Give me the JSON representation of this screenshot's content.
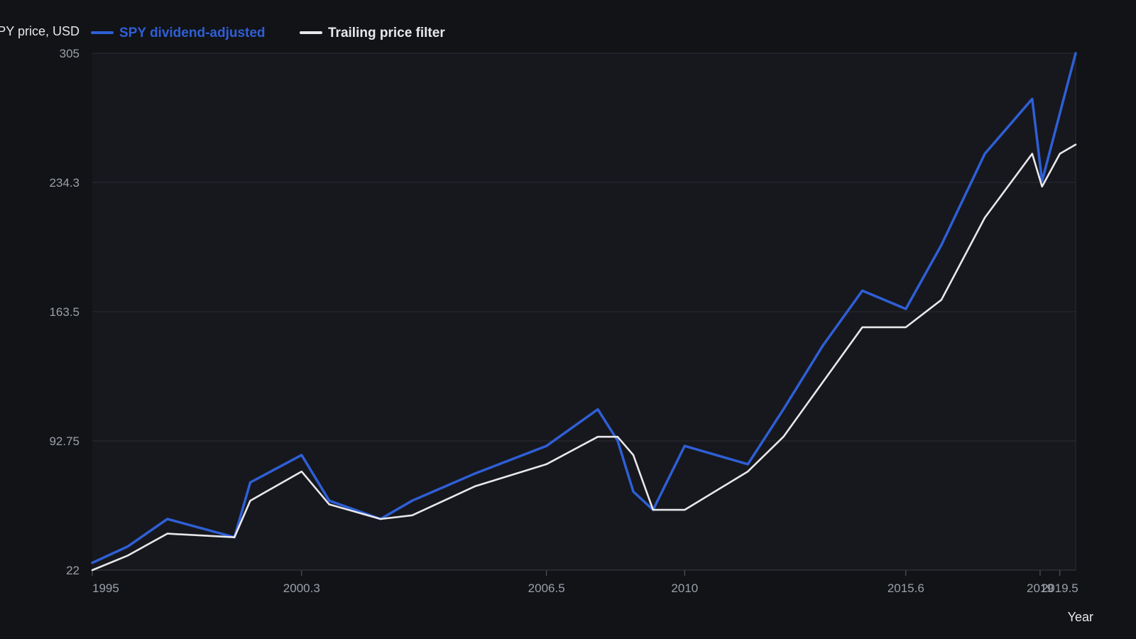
{
  "chart_data": {
    "type": "line",
    "ylabel": "SPY price, USD",
    "xlabel": "Year",
    "y_ticks": [
      "22",
      "92.75",
      "163.5",
      "234.3",
      "305"
    ],
    "x_ticks": [
      "1995",
      "2000.3",
      "2006.5",
      "2010",
      "2015.6",
      "2019",
      "2019.5"
    ],
    "xlim": [
      1995,
      2019.9
    ],
    "ylim": [
      22,
      305
    ],
    "grid": true,
    "legend_position": "top",
    "series": [
      {
        "name": "SPY dividend-adjusted",
        "color": "#2f5fd6",
        "x": [
          1995,
          1995.9,
          1996.9,
          1998.6,
          1999,
          2000.3,
          2001,
          2002.3,
          2003.1,
          2004.7,
          2006.5,
          2007.8,
          2008.3,
          2008.7,
          2009.2,
          2010,
          2011.6,
          2012.5,
          2013.5,
          2014.5,
          2015.6,
          2016.5,
          2017.6,
          2018.8,
          2019.05,
          2019.9
        ],
        "y": [
          26,
          35,
          50,
          40,
          70,
          85,
          60,
          50,
          60,
          75,
          90,
          110,
          93,
          65,
          55,
          90,
          80,
          110,
          145,
          175,
          165,
          200,
          250,
          280,
          235,
          305
        ]
      },
      {
        "name": "Trailing price filter",
        "color": "#e8e8ea",
        "x": [
          1995,
          1995.9,
          1996.9,
          1998.6,
          1999,
          2000.3,
          2001,
          2002.3,
          2003.1,
          2004.7,
          2006.5,
          2007.8,
          2008.3,
          2008.7,
          2009.2,
          2010,
          2011.6,
          2012.5,
          2013.5,
          2014.5,
          2015.6,
          2016.5,
          2017.6,
          2018.8,
          2019.05,
          2019.5,
          2019.9
        ],
        "y": [
          22,
          30,
          42,
          40,
          60,
          76,
          58,
          50,
          52,
          68,
          80,
          95,
          95,
          85,
          55,
          55,
          76,
          95,
          125,
          155,
          155,
          170,
          215,
          250,
          232,
          250,
          255
        ]
      }
    ]
  }
}
